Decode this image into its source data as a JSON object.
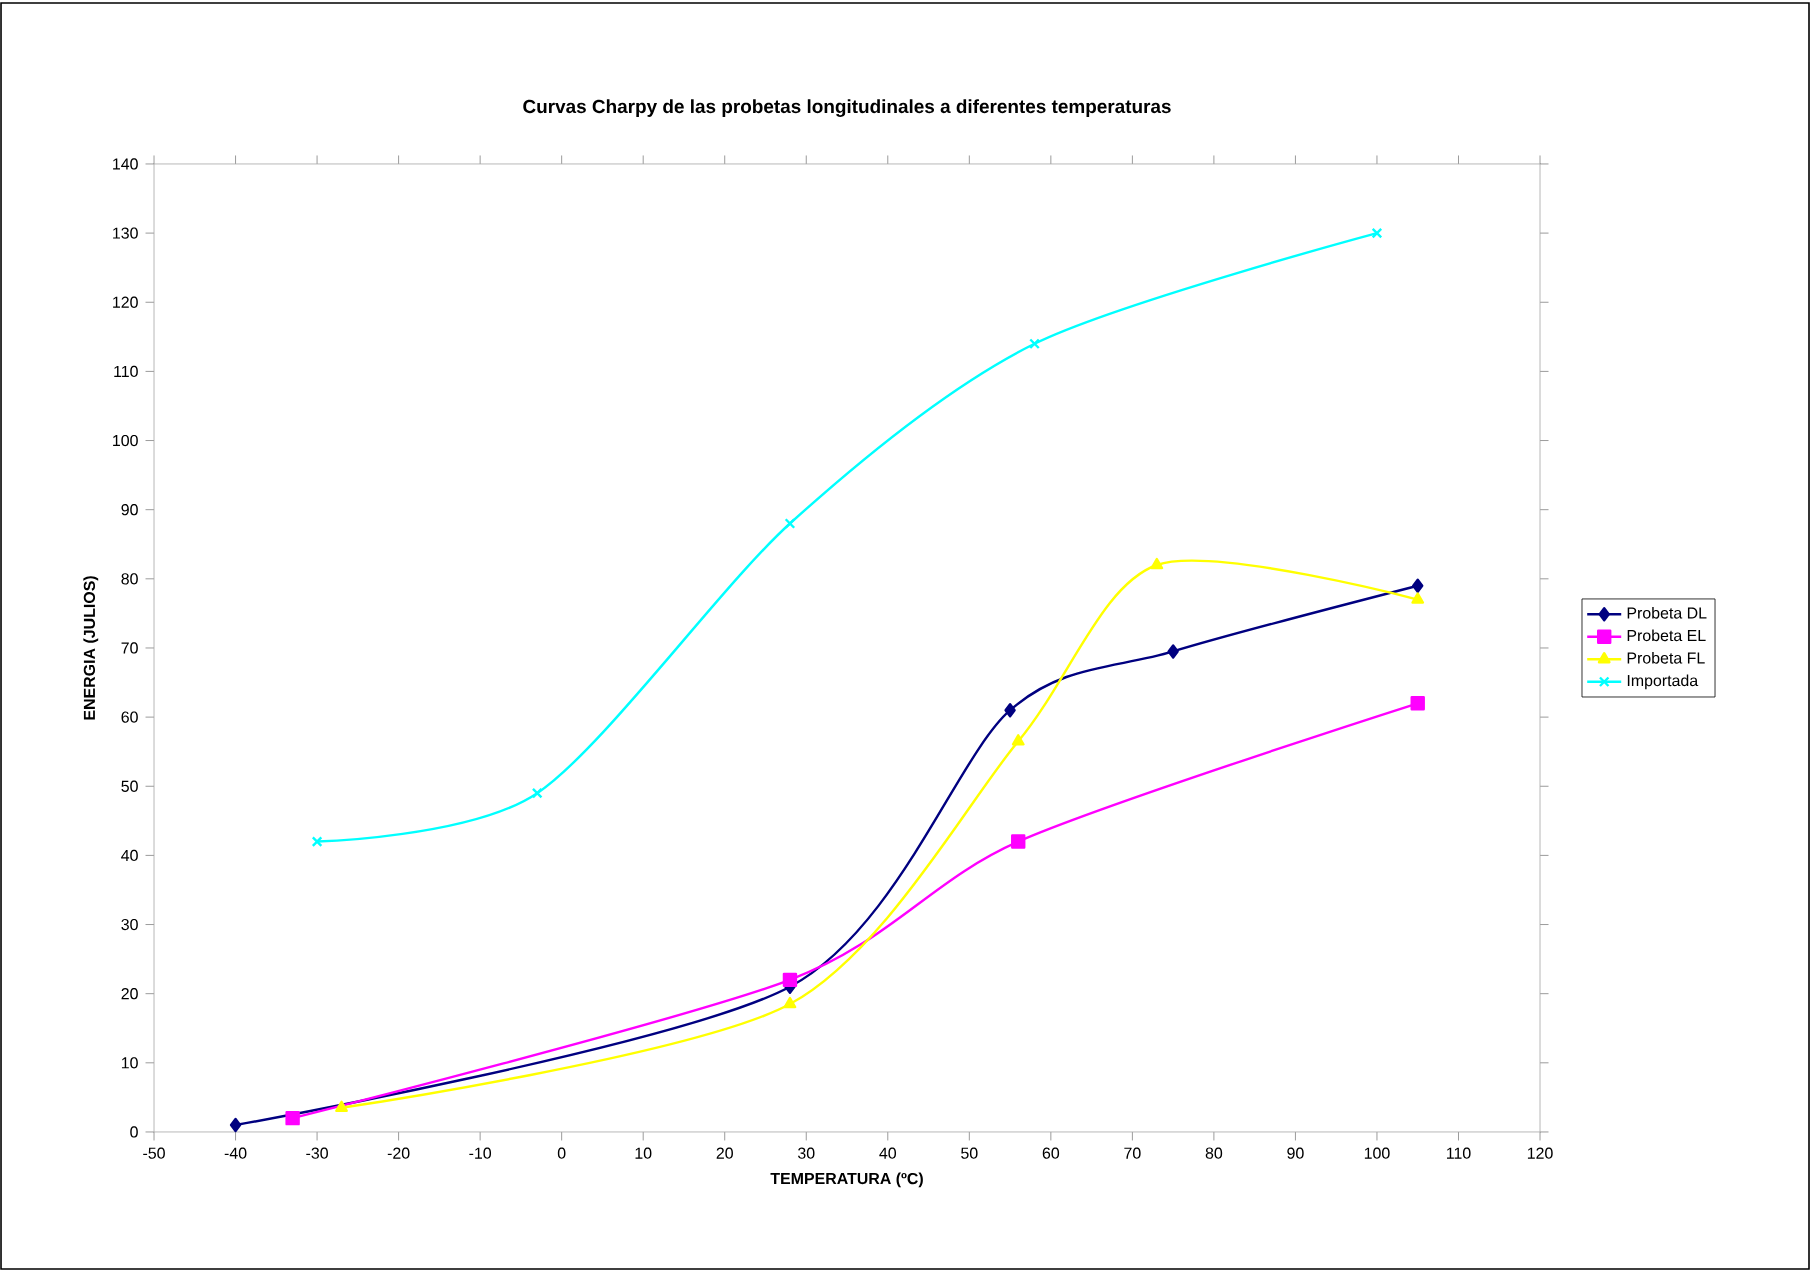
{
  "chart_data": {
    "type": "line",
    "title": "Curvas Charpy de las probetas longitudinales a diferentes temperaturas",
    "xlabel": "TEMPERATURA (ºC)",
    "ylabel": "ENERGIA (JULIOS)",
    "xlim": [
      -50,
      120
    ],
    "xticks": [
      -50,
      -40,
      -30,
      -20,
      -10,
      0,
      10,
      20,
      30,
      40,
      50,
      60,
      70,
      80,
      90,
      100,
      110,
      120
    ],
    "ylim": [
      0,
      140
    ],
    "yticks": [
      0,
      10,
      20,
      30,
      40,
      50,
      60,
      70,
      80,
      90,
      100,
      110,
      120,
      130,
      140
    ],
    "grid": false,
    "legend": "right",
    "line_style": "solid",
    "series": [
      {
        "name": "Probeta DL",
        "color": "#000080",
        "marker": "diamond",
        "x": [
          -40,
          28,
          55,
          75,
          105
        ],
        "values": [
          1,
          21,
          61,
          69.5,
          79
        ]
      },
      {
        "name": "Probeta EL",
        "color": "#ff00ff",
        "marker": "square",
        "x": [
          -33,
          28,
          56,
          105
        ],
        "values": [
          2,
          22,
          42,
          62
        ]
      },
      {
        "name": "Probeta FL",
        "color": "#ffff00",
        "marker": "triangle",
        "x": [
          -27,
          28,
          56,
          73,
          105
        ],
        "values": [
          3.5,
          18.5,
          56.5,
          82,
          77
        ]
      },
      {
        "name": "Importada",
        "color": "#00ffff",
        "marker": "cross",
        "x": [
          -30,
          -3,
          28,
          58,
          100
        ],
        "values": [
          42,
          49,
          88,
          114,
          130
        ]
      }
    ]
  }
}
